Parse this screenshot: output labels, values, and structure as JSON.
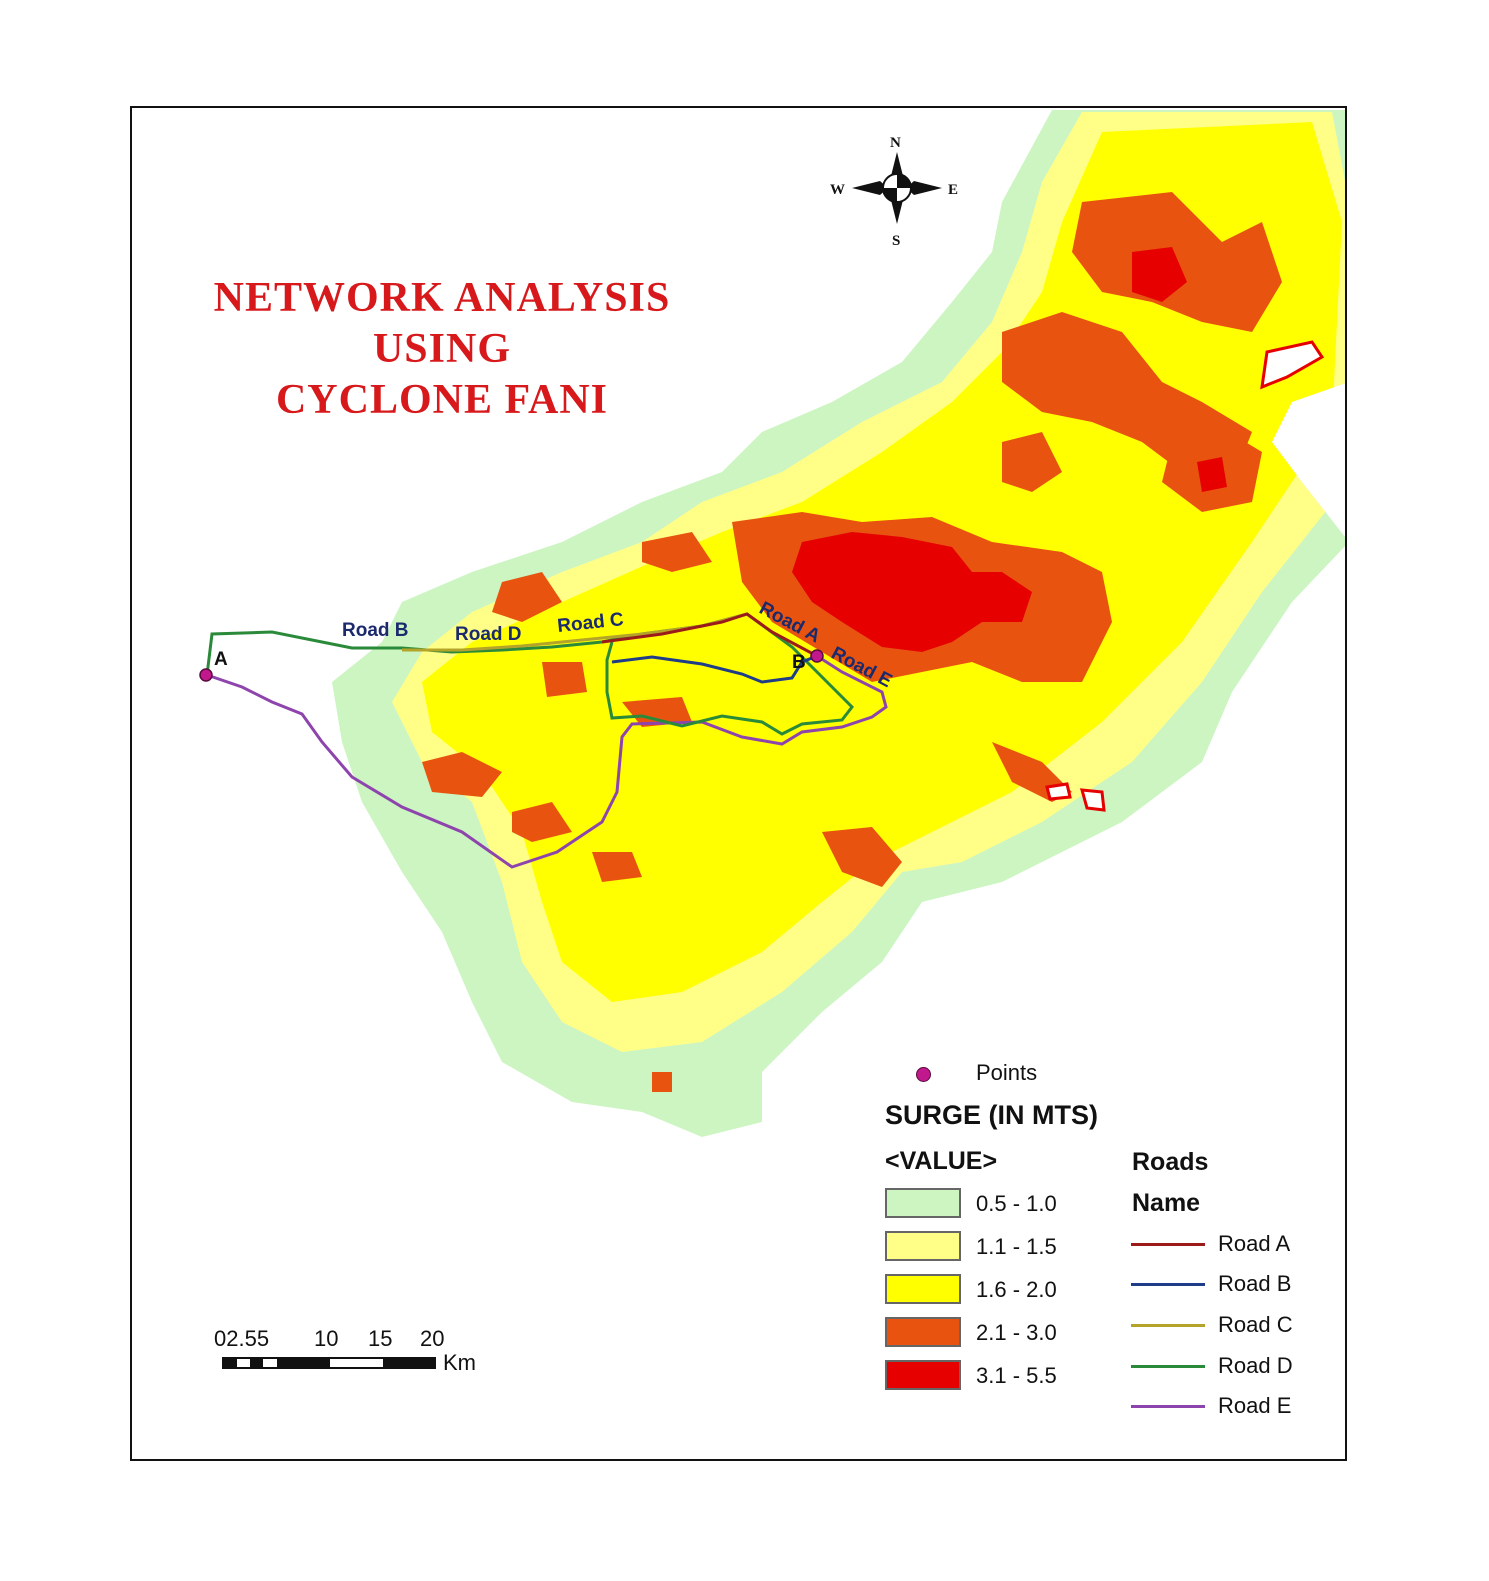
{
  "title": {
    "line1": "NETWORK ANALYSIS",
    "line2": "USING",
    "line3": "CYCLONE FANI"
  },
  "compass": {
    "n": "N",
    "s": "S",
    "e": "E",
    "w": "W"
  },
  "points": {
    "a_label": "A",
    "b_label": "B"
  },
  "road_labels": {
    "road_b": "Road B",
    "road_d": "Road D",
    "road_c": "Road C",
    "road_a": "Road A",
    "road_e": "Road E"
  },
  "legend": {
    "points_label": "Points",
    "points_color": "#c2188e",
    "surge_title": "SURGE (IN MTS)",
    "value_label": "<VALUE>",
    "classes": [
      {
        "range": "0.5 - 1.0",
        "color": "#ccf5c2"
      },
      {
        "range": "1.1 - 1.5",
        "color": "#ffff88"
      },
      {
        "range": "1.6 - 2.0",
        "color": "#ffff00"
      },
      {
        "range": "2.1 - 3.0",
        "color": "#e85310"
      },
      {
        "range": "3.1 - 5.5",
        "color": "#e60000"
      }
    ],
    "roads_title": "Roads",
    "name_label": "Name",
    "roads": [
      {
        "name": "Road A",
        "color": "#9b1b1b"
      },
      {
        "name": "Road B",
        "color": "#1f3c88"
      },
      {
        "name": "Road C",
        "color": "#b5a42a"
      },
      {
        "name": "Road D",
        "color": "#2a8a3a"
      },
      {
        "name": "Road E",
        "color": "#8e44ad"
      }
    ]
  },
  "scale_bar": {
    "ticks": [
      "02.55",
      "10",
      "15",
      "20"
    ],
    "unit": "Km"
  }
}
